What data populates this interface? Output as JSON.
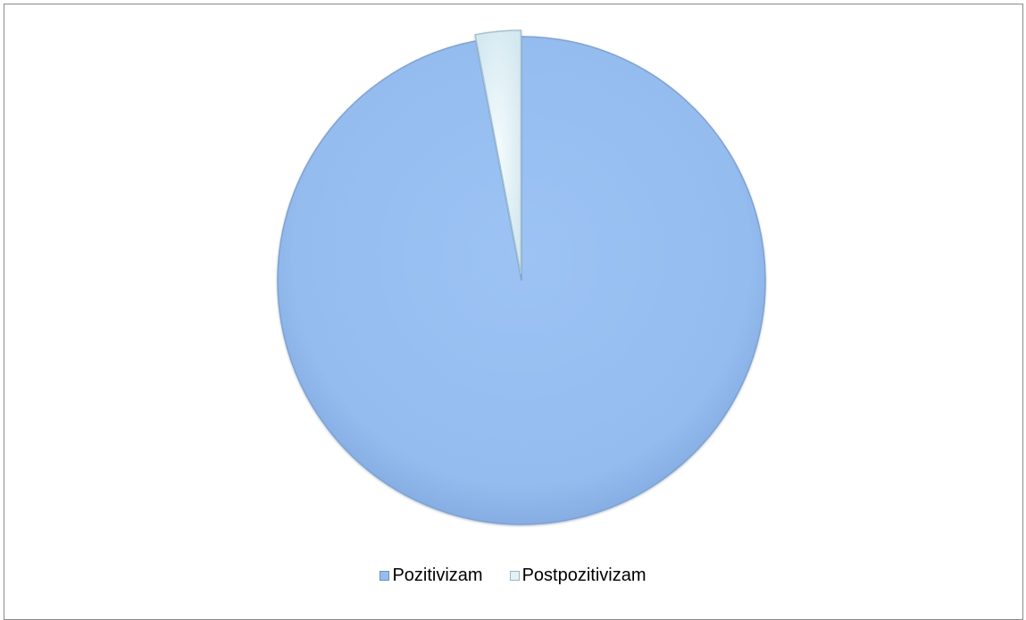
{
  "chart_data": {
    "type": "pie",
    "categories": [
      "Pozitivizam",
      "Postpozitivizam"
    ],
    "values": [
      97,
      3
    ],
    "colors": [
      "#95bdf0",
      "#e3f1f6"
    ],
    "legend_position": "bottom",
    "explode": "Postpozitivizam"
  }
}
